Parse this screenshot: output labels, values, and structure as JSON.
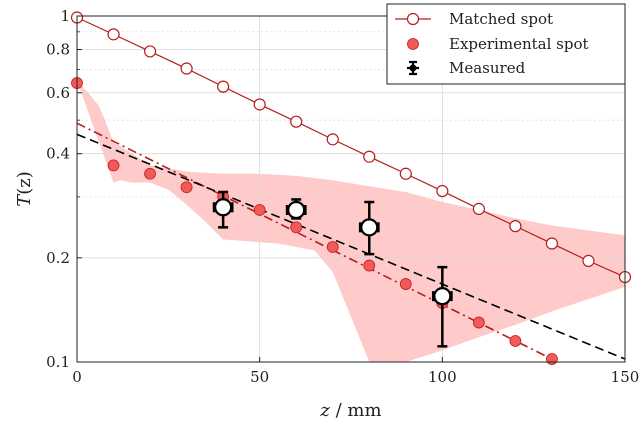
{
  "chart_data": {
    "type": "scatter",
    "title": "",
    "xlabel": {
      "var": "z",
      "unit": " / mm"
    },
    "ylabel": {
      "var": "T",
      "arg": "(z)"
    },
    "xlim": [
      0,
      150
    ],
    "ylim": [
      0.1,
      1.0
    ],
    "yscale": "log",
    "x_ticks": [
      0,
      50,
      100,
      150
    ],
    "y_ticks": [
      0.1,
      0.2,
      0.4,
      0.6,
      0.8,
      1
    ],
    "y_tick_labels": [
      "0.1",
      "0.2",
      "0.4",
      "0.6",
      "0.8",
      "1"
    ],
    "grid": true,
    "legend_position": "top-right",
    "series": [
      {
        "name": "Matched spot",
        "kind": "line-open-markers",
        "color": "#b41e1e",
        "x": [
          0,
          10,
          20,
          30,
          40,
          50,
          60,
          70,
          80,
          90,
          100,
          110,
          120,
          130,
          140,
          150
        ],
        "y": [
          0.99,
          0.885,
          0.79,
          0.705,
          0.625,
          0.555,
          0.495,
          0.44,
          0.392,
          0.35,
          0.312,
          0.277,
          0.247,
          0.22,
          0.196,
          0.176
        ]
      },
      {
        "name": "Experimental spot",
        "kind": "filled-markers",
        "color": "#f25a5a",
        "edge_color": "#c01e1e",
        "x": [
          0,
          10,
          20,
          30,
          40,
          50,
          60,
          70,
          80,
          90,
          100,
          110,
          120,
          130
        ],
        "y": [
          0.64,
          0.37,
          0.35,
          0.32,
          0.3,
          0.275,
          0.245,
          0.215,
          0.19,
          0.168,
          0.148,
          0.13,
          0.115,
          0.102
        ]
      },
      {
        "name": "Measured",
        "kind": "errorbar",
        "color": "#000000",
        "x": [
          40,
          60,
          80,
          100
        ],
        "y": [
          0.28,
          0.275,
          0.245,
          0.155
        ],
        "x_err": [
          2.5,
          2.5,
          2.5,
          2.5
        ],
        "y_err_low": [
          0.035,
          0.015,
          0.04,
          0.044
        ],
        "y_err_high": [
          0.03,
          0.02,
          0.045,
          0.033
        ]
      }
    ],
    "fits": [
      {
        "style": "dash-dot",
        "color": "#b41e1e",
        "x": [
          0,
          130
        ],
        "y": [
          0.49,
          0.102
        ]
      },
      {
        "style": "dashed",
        "color": "#000000",
        "x": [
          0,
          150
        ],
        "y": [
          0.455,
          0.102
        ]
      }
    ],
    "band": {
      "color": "#ffcaca",
      "x_upper": [
        0,
        3,
        6,
        8,
        10,
        12,
        20,
        30,
        40,
        50,
        60,
        70,
        80,
        90,
        100,
        110,
        120,
        130,
        140,
        150
      ],
      "y_upper": [
        0.65,
        0.6,
        0.55,
        0.49,
        0.43,
        0.42,
        0.37,
        0.355,
        0.35,
        0.35,
        0.345,
        0.335,
        0.322,
        0.31,
        0.29,
        0.275,
        0.26,
        0.248,
        0.24,
        0.232
      ],
      "x_lower": [
        150,
        140,
        130,
        120,
        110,
        100,
        90,
        85,
        80,
        75,
        70,
        65,
        55,
        50,
        45,
        40,
        35,
        30,
        25,
        20,
        15,
        12,
        10
      ],
      "y_lower": [
        0.165,
        0.152,
        0.14,
        0.128,
        0.118,
        0.108,
        0.1,
        0.1,
        0.1,
        0.135,
        0.182,
        0.21,
        0.22,
        0.222,
        0.224,
        0.226,
        0.255,
        0.285,
        0.315,
        0.33,
        0.33,
        0.335,
        0.33
      ]
    }
  }
}
